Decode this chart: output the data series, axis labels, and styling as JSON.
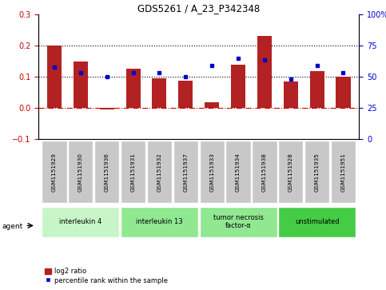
{
  "title": "GDS5261 / A_23_P342348",
  "samples": [
    "GSM1151929",
    "GSM1151930",
    "GSM1151936",
    "GSM1151931",
    "GSM1151932",
    "GSM1151937",
    "GSM1151933",
    "GSM1151934",
    "GSM1151938",
    "GSM1151928",
    "GSM1151935",
    "GSM1151951"
  ],
  "log2_ratio": [
    0.2,
    0.148,
    -0.005,
    0.125,
    0.095,
    0.087,
    0.018,
    0.14,
    0.232,
    0.085,
    0.118,
    0.1
  ],
  "percentile": [
    57.5,
    53.5,
    50.0,
    53.5,
    53.5,
    50.0,
    59.0,
    65.0,
    63.5,
    48.5,
    59.0,
    53.5
  ],
  "bar_color": "#B22222",
  "marker_color": "#0000CC",
  "ylim_left": [
    -0.1,
    0.3
  ],
  "ylim_right": [
    0,
    100
  ],
  "yticks_left": [
    -0.1,
    0,
    0.1,
    0.2,
    0.3
  ],
  "yticks_right": [
    0,
    25,
    50,
    75,
    100
  ],
  "hline_y0": 0.0,
  "hline_y1": 0.1,
  "hline_y2": 0.2,
  "groups": [
    {
      "label": "interleukin 4",
      "start": 0,
      "end": 3,
      "color": "#c8f5c8"
    },
    {
      "label": "interleukin 13",
      "start": 3,
      "end": 6,
      "color": "#90e890"
    },
    {
      "label": "tumor necrosis\nfactor-α",
      "start": 6,
      "end": 9,
      "color": "#90e890"
    },
    {
      "label": "unstimulated",
      "start": 9,
      "end": 12,
      "color": "#44cc44"
    }
  ],
  "agent_label": "agent",
  "legend_log2": "log2 ratio",
  "legend_pct": "percentile rank within the sample",
  "sample_box_color": "#c8c8c8"
}
